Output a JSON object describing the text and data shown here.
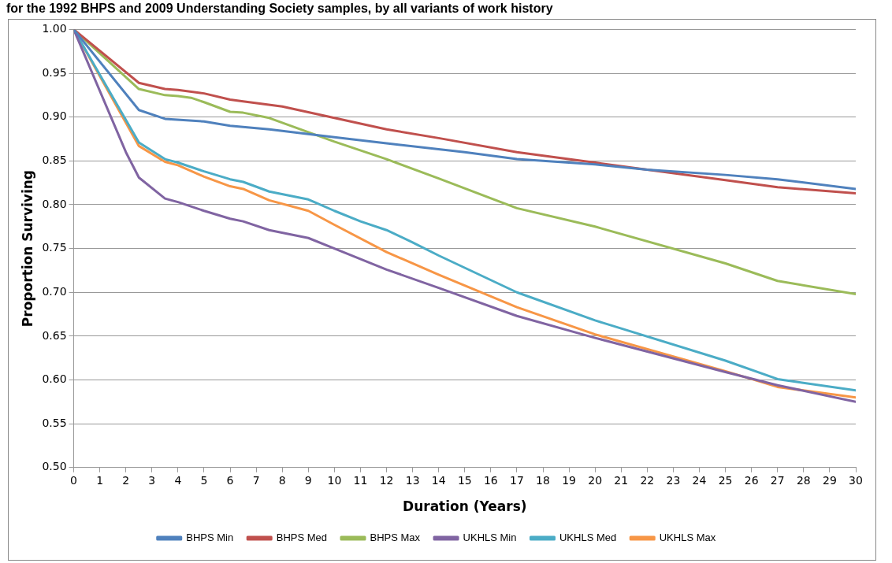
{
  "chart_data": {
    "type": "line",
    "title": "for the 1992 BHPS and 2009 Understanding Society samples, by all variants of work history",
    "xlabel": "Duration (Years)",
    "ylabel": "Proportion Surviving",
    "xlim": [
      0,
      30
    ],
    "xticks": [
      0,
      1,
      2,
      3,
      4,
      5,
      6,
      7,
      8,
      9,
      10,
      11,
      12,
      13,
      14,
      15,
      16,
      17,
      18,
      19,
      20,
      21,
      22,
      23,
      24,
      25,
      26,
      27,
      28,
      29,
      30
    ],
    "ylim": [
      0.5,
      1.0
    ],
    "yticks": [
      {
        "value": 0.5,
        "label": "0.50"
      },
      {
        "value": 0.55,
        "label": "0.55"
      },
      {
        "value": 0.6,
        "label": "0.60"
      },
      {
        "value": 0.65,
        "label": "0.65"
      },
      {
        "value": 0.7,
        "label": "0.70"
      },
      {
        "value": 0.75,
        "label": "0.75"
      },
      {
        "value": 0.8,
        "label": "0.80"
      },
      {
        "value": 0.85,
        "label": "0.85"
      },
      {
        "value": 0.9,
        "label": "0.90"
      },
      {
        "value": 0.95,
        "label": "0.95"
      },
      {
        "value": 1.0,
        "label": "1.00"
      }
    ],
    "grid": "y",
    "legend": "bottom",
    "marker": "none",
    "line_style": "solid",
    "series": [
      {
        "name": "BHPS Min",
        "color": "#4f81bd",
        "x": [
          0,
          2.5,
          3.5,
          5,
          6,
          7.5,
          10,
          12,
          15,
          17,
          20,
          22,
          25,
          27,
          30
        ],
        "values": [
          1.0,
          0.908,
          0.898,
          0.895,
          0.89,
          0.886,
          0.877,
          0.87,
          0.86,
          0.852,
          0.846,
          0.84,
          0.834,
          0.829,
          0.818
        ]
      },
      {
        "name": "BHPS Med",
        "color": "#c0504d",
        "x": [
          0,
          2.5,
          3.5,
          4,
          5,
          6,
          6.5,
          8,
          10,
          12,
          14,
          17,
          20,
          22,
          25,
          27,
          30
        ],
        "values": [
          1.0,
          0.939,
          0.932,
          0.931,
          0.927,
          0.92,
          0.918,
          0.912,
          0.899,
          0.886,
          0.876,
          0.86,
          0.848,
          0.84,
          0.828,
          0.82,
          0.813
        ]
      },
      {
        "name": "BHPS Max",
        "color": "#9bbb59",
        "x": [
          0,
          2.5,
          3.5,
          4,
          4.5,
          5,
          6,
          6.5,
          7.5,
          10,
          12,
          14,
          17,
          20,
          25,
          27,
          30
        ],
        "values": [
          1.0,
          0.932,
          0.925,
          0.924,
          0.922,
          0.917,
          0.906,
          0.905,
          0.899,
          0.872,
          0.852,
          0.83,
          0.796,
          0.775,
          0.733,
          0.713,
          0.698
        ]
      },
      {
        "name": "UKHLS Min",
        "color": "#8064a2",
        "x": [
          0,
          1,
          2,
          2.5,
          3.5,
          4,
          5,
          6,
          6.5,
          7.5,
          9,
          10,
          12,
          14,
          17,
          20,
          25,
          27,
          30
        ],
        "values": [
          1.0,
          0.93,
          0.86,
          0.831,
          0.807,
          0.803,
          0.793,
          0.784,
          0.781,
          0.771,
          0.762,
          0.75,
          0.726,
          0.705,
          0.673,
          0.648,
          0.609,
          0.594,
          0.575
        ]
      },
      {
        "name": "UKHLS Med",
        "color": "#4bacc6",
        "x": [
          0,
          2.5,
          3.5,
          4,
          5,
          6,
          6.5,
          7.5,
          9,
          10,
          11,
          12,
          13,
          14,
          17,
          20,
          25,
          27,
          30
        ],
        "values": [
          1.0,
          0.871,
          0.852,
          0.848,
          0.838,
          0.829,
          0.826,
          0.815,
          0.806,
          0.793,
          0.781,
          0.771,
          0.757,
          0.742,
          0.7,
          0.668,
          0.622,
          0.601,
          0.588
        ]
      },
      {
        "name": "UKHLS Max",
        "color": "#f79646",
        "x": [
          0,
          2.5,
          3.5,
          4,
          5,
          6,
          6.5,
          7.5,
          9,
          10,
          12,
          14,
          17,
          20,
          25,
          27,
          30
        ],
        "values": [
          1.0,
          0.867,
          0.849,
          0.845,
          0.832,
          0.821,
          0.818,
          0.805,
          0.793,
          0.777,
          0.746,
          0.72,
          0.683,
          0.652,
          0.61,
          0.592,
          0.58
        ]
      }
    ]
  }
}
